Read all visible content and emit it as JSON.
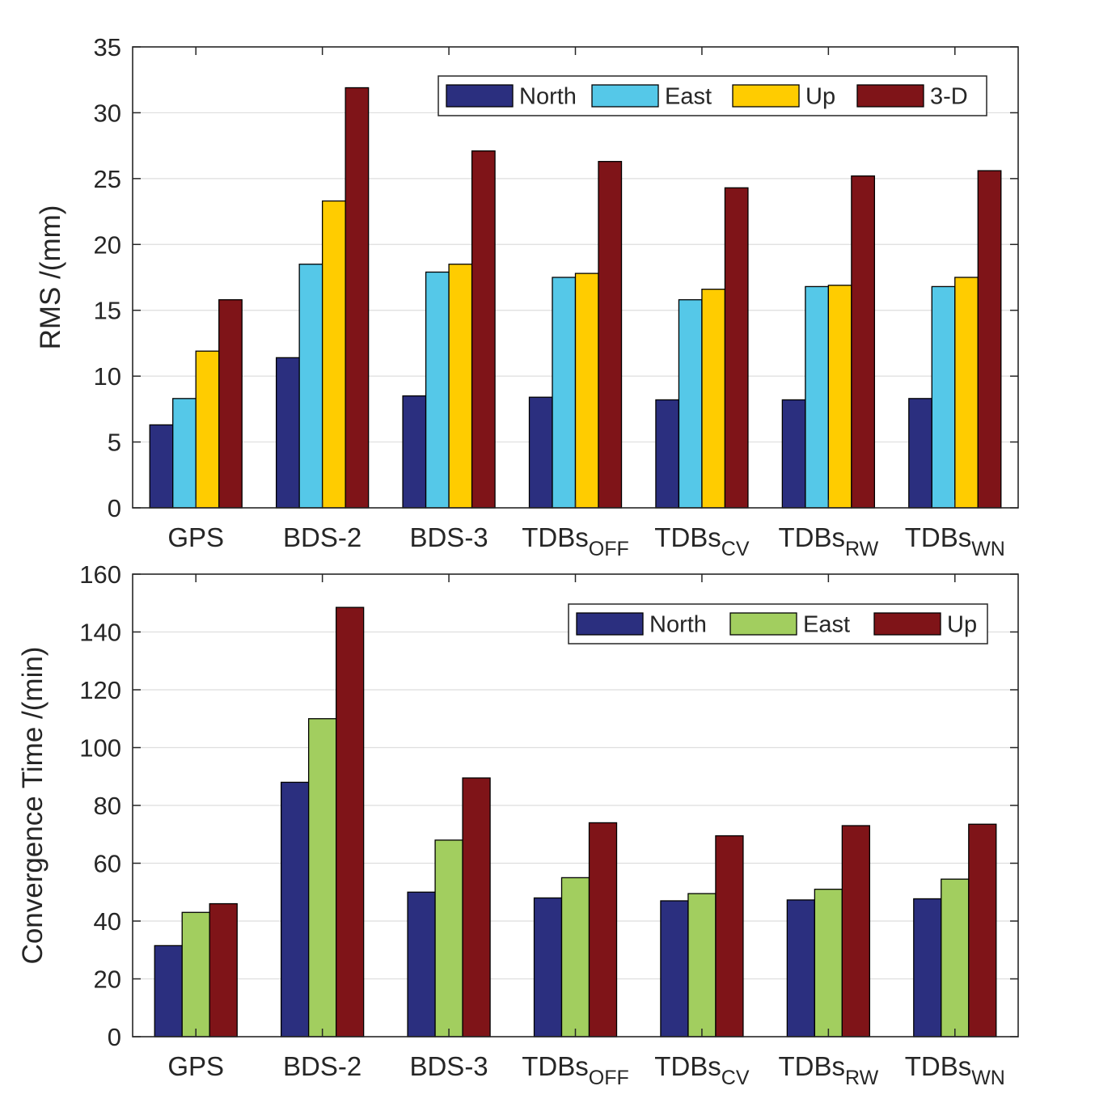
{
  "chart_data": [
    {
      "type": "bar",
      "title": "",
      "xlabel": "",
      "ylabel": "RMS /(mm)",
      "ylim": [
        0,
        35
      ],
      "yticks": [
        0,
        5,
        10,
        15,
        20,
        25,
        30,
        35
      ],
      "grid": "horizontal",
      "legend_position": "top-right",
      "categories": [
        {
          "base": "GPS",
          "sub": ""
        },
        {
          "base": "BDS-2",
          "sub": ""
        },
        {
          "base": "BDS-3",
          "sub": ""
        },
        {
          "base": "TDBs",
          "sub": "OFF"
        },
        {
          "base": "TDBs",
          "sub": "CV"
        },
        {
          "base": "TDBs",
          "sub": "RW"
        },
        {
          "base": "TDBs",
          "sub": "WN"
        }
      ],
      "series": [
        {
          "name": "North",
          "color": "#2B2F7F",
          "values": [
            6.3,
            11.4,
            8.5,
            8.4,
            8.2,
            8.2,
            8.3
          ]
        },
        {
          "name": "East",
          "color": "#55C8E8",
          "values": [
            8.3,
            18.5,
            17.9,
            17.5,
            15.8,
            16.8,
            16.8
          ]
        },
        {
          "name": "Up",
          "color": "#FFCC00",
          "values": [
            11.9,
            23.3,
            18.5,
            17.8,
            16.6,
            16.9,
            17.5
          ]
        },
        {
          "name": "3-D",
          "color": "#7F1418",
          "values": [
            15.8,
            31.9,
            27.1,
            26.3,
            24.3,
            25.2,
            25.6
          ]
        }
      ]
    },
    {
      "type": "bar",
      "title": "",
      "xlabel": "",
      "ylabel": "Convergence Time /(min)",
      "ylim": [
        0,
        160
      ],
      "yticks": [
        0,
        20,
        40,
        60,
        80,
        100,
        120,
        140,
        160
      ],
      "grid": "horizontal",
      "legend_position": "top-right",
      "categories": [
        {
          "base": "GPS",
          "sub": ""
        },
        {
          "base": "BDS-2",
          "sub": ""
        },
        {
          "base": "BDS-3",
          "sub": ""
        },
        {
          "base": "TDBs",
          "sub": "OFF"
        },
        {
          "base": "TDBs",
          "sub": "CV"
        },
        {
          "base": "TDBs",
          "sub": "RW"
        },
        {
          "base": "TDBs",
          "sub": "WN"
        }
      ],
      "series": [
        {
          "name": "North",
          "color": "#2B2F7F",
          "values": [
            31.5,
            88,
            50,
            48,
            47,
            47.3,
            47.7
          ]
        },
        {
          "name": "East",
          "color": "#A2CE5F",
          "values": [
            43,
            110,
            68,
            55,
            49.5,
            51,
            54.5
          ]
        },
        {
          "name": "Up",
          "color": "#7F1418",
          "values": [
            46,
            148.5,
            89.5,
            74,
            69.5,
            73,
            73.5
          ]
        }
      ]
    }
  ]
}
